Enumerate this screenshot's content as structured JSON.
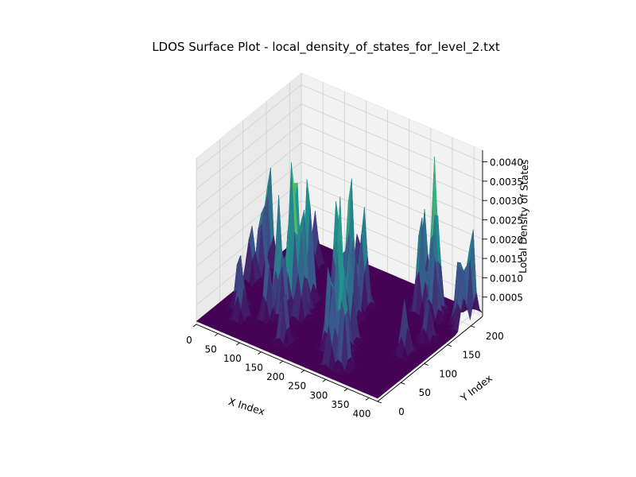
{
  "chart_data": {
    "type": "surface",
    "title": "LDOS Surface Plot - local_density_of_states_for_level_2.txt",
    "xlabel": "X Index",
    "ylabel": "Y Index",
    "zlabel": "Local Density of States",
    "x_ticks": [
      "0",
      "50",
      "100",
      "150",
      "200",
      "250",
      "300",
      "350",
      "400"
    ],
    "y_ticks": [
      "0",
      "50",
      "100",
      "150",
      "200"
    ],
    "z_ticks": [
      "0.0005",
      "0.0010",
      "0.0015",
      "0.0020",
      "0.0025",
      "0.0030",
      "0.0035",
      "0.0040"
    ],
    "xlim": [
      0,
      420
    ],
    "ylim": [
      0,
      225
    ],
    "zlim": [
      0,
      0.0043
    ],
    "colormap": "viridis",
    "colormap_stops": [
      "#440154",
      "#3b528b",
      "#21918c",
      "#5ec962",
      "#fde725"
    ],
    "grid": true,
    "background_baseline_ldos": 8e-05,
    "peaks": [
      {
        "x": 5,
        "y": 150,
        "z": 0.003
      },
      {
        "x": 12,
        "y": 130,
        "z": 0.0022
      },
      {
        "x": 8,
        "y": 110,
        "z": 0.0016
      },
      {
        "x": 120,
        "y": 95,
        "z": 0.0042
      },
      {
        "x": 110,
        "y": 110,
        "z": 0.0036
      },
      {
        "x": 130,
        "y": 120,
        "z": 0.0034
      },
      {
        "x": 105,
        "y": 80,
        "z": 0.003
      },
      {
        "x": 140,
        "y": 100,
        "z": 0.0028
      },
      {
        "x": 95,
        "y": 115,
        "z": 0.0025
      },
      {
        "x": 150,
        "y": 85,
        "z": 0.0022
      },
      {
        "x": 125,
        "y": 70,
        "z": 0.002
      },
      {
        "x": 100,
        "y": 60,
        "z": 0.0018
      },
      {
        "x": 200,
        "y": 145,
        "z": 0.0035
      },
      {
        "x": 215,
        "y": 130,
        "z": 0.0032
      },
      {
        "x": 190,
        "y": 125,
        "z": 0.003
      },
      {
        "x": 225,
        "y": 150,
        "z": 0.0028
      },
      {
        "x": 205,
        "y": 110,
        "z": 0.0024
      },
      {
        "x": 235,
        "y": 120,
        "z": 0.0022
      },
      {
        "x": 180,
        "y": 140,
        "z": 0.002
      },
      {
        "x": 240,
        "y": 85,
        "z": 0.0036
      },
      {
        "x": 255,
        "y": 70,
        "z": 0.003
      },
      {
        "x": 270,
        "y": 80,
        "z": 0.0026
      },
      {
        "x": 250,
        "y": 55,
        "z": 0.0024
      },
      {
        "x": 280,
        "y": 60,
        "z": 0.002
      },
      {
        "x": 330,
        "y": 205,
        "z": 0.0038
      },
      {
        "x": 345,
        "y": 195,
        "z": 0.003
      },
      {
        "x": 320,
        "y": 185,
        "z": 0.0026
      },
      {
        "x": 355,
        "y": 180,
        "z": 0.0022
      },
      {
        "x": 300,
        "y": 210,
        "z": 0.0024
      },
      {
        "x": 295,
        "y": 40,
        "z": 0.003
      },
      {
        "x": 310,
        "y": 30,
        "z": 0.0024
      },
      {
        "x": 285,
        "y": 25,
        "z": 0.0018
      },
      {
        "x": 410,
        "y": 210,
        "z": 0.0026
      },
      {
        "x": 400,
        "y": 195,
        "z": 0.002
      },
      {
        "x": 415,
        "y": 185,
        "z": 0.0016
      },
      {
        "x": 60,
        "y": 40,
        "z": 0.0016
      },
      {
        "x": 35,
        "y": 60,
        "z": 0.0014
      },
      {
        "x": 75,
        "y": 185,
        "z": 0.0014
      },
      {
        "x": 170,
        "y": 30,
        "z": 0.0016
      },
      {
        "x": 375,
        "y": 100,
        "z": 0.0014
      },
      {
        "x": 385,
        "y": 140,
        "z": 0.0012
      },
      {
        "x": 160,
        "y": 200,
        "z": 0.0012
      }
    ]
  }
}
